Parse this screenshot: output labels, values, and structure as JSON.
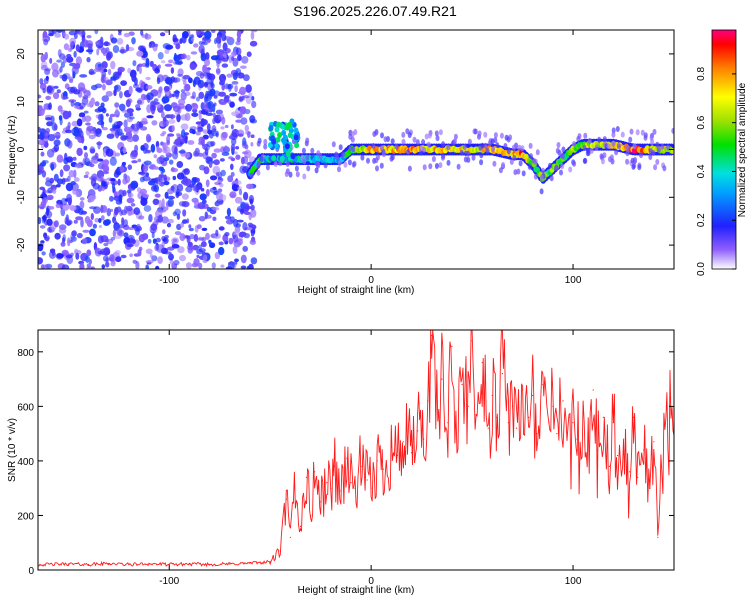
{
  "title": "S196.2025.226.07.49.R21",
  "chart_data": [
    {
      "type": "heatmap",
      "title": "S196.2025.226.07.49.R21",
      "xlabel": "Height of straight line (km)",
      "ylabel": "Frequency (Hz)",
      "xlim": [
        -165,
        150
      ],
      "ylim": [
        -25,
        25
      ],
      "xticks": [
        -100,
        0,
        100
      ],
      "yticks": [
        -20,
        -10,
        0,
        10,
        20
      ],
      "colorbar": {
        "label": "Normalized spectral amplitude",
        "range": [
          0.0,
          0.98
        ],
        "ticks": [
          0.0,
          0.2,
          0.4,
          0.6,
          0.8
        ]
      },
      "ridge": {
        "x": [
          -60,
          -55,
          -50,
          -45,
          -40,
          -35,
          -30,
          -25,
          -20,
          -15,
          -10,
          0,
          10,
          20,
          30,
          40,
          50,
          60,
          70,
          75,
          80,
          85,
          90,
          95,
          100,
          105,
          110,
          120,
          130,
          140,
          150
        ],
        "freq": [
          -5,
          -2,
          -2,
          -2,
          -2,
          -2,
          -2,
          -2,
          -2,
          -2,
          0,
          0,
          0,
          0,
          0,
          0,
          0,
          0,
          -1,
          -1,
          -3,
          -6,
          -4,
          -2,
          0,
          1,
          1,
          1,
          0,
          0,
          0
        ],
        "amplitude": [
          0.4,
          0.45,
          0.35,
          0.35,
          0.4,
          0.4,
          0.35,
          0.35,
          0.35,
          0.35,
          0.5,
          0.8,
          0.75,
          0.8,
          0.75,
          0.7,
          0.7,
          0.75,
          0.75,
          0.85,
          0.6,
          0.5,
          0.55,
          0.5,
          0.55,
          0.6,
          0.65,
          0.75,
          0.9,
          0.7,
          0.6
        ]
      },
      "noise_region": {
        "x_range": [
          -165,
          -58
        ],
        "amplitude_range": [
          0.05,
          0.22
        ]
      }
    },
    {
      "type": "line",
      "xlabel": "Height of straight line (km)",
      "ylabel": "SNR (10 * v/v)",
      "xlim": [
        -165,
        150
      ],
      "ylim": [
        0,
        880
      ],
      "xticks": [
        -100,
        0,
        100
      ],
      "yticks": [
        0,
        200,
        400,
        600,
        800
      ],
      "series": [
        {
          "name": "SNR",
          "color": "#ff1a1a",
          "x": [
            -165,
            -150,
            -140,
            -130,
            -120,
            -110,
            -100,
            -90,
            -80,
            -70,
            -60,
            -50,
            -45,
            -42,
            -40,
            -38,
            -35,
            -32,
            -30,
            -28,
            -25,
            -22,
            -20,
            -18,
            -15,
            -12,
            -10,
            -8,
            -5,
            -2,
            0,
            3,
            6,
            10,
            13,
            16,
            20,
            23,
            26,
            28,
            30,
            32,
            35,
            38,
            40,
            42,
            45,
            48,
            50,
            52,
            55,
            58,
            60,
            62,
            65,
            68,
            70,
            72,
            75,
            78,
            80,
            82,
            85,
            88,
            90,
            92,
            95,
            98,
            100,
            102,
            105,
            108,
            110,
            112,
            115,
            118,
            120,
            122,
            125,
            128,
            130,
            132,
            135,
            138,
            140,
            142,
            145,
            148,
            150
          ],
          "y": [
            20,
            22,
            20,
            24,
            20,
            23,
            20,
            22,
            20,
            22,
            25,
            30,
            70,
            260,
            120,
            300,
            160,
            340,
            200,
            360,
            250,
            320,
            300,
            380,
            290,
            410,
            320,
            300,
            380,
            330,
            300,
            400,
            370,
            450,
            420,
            470,
            430,
            510,
            480,
            620,
            860,
            580,
            700,
            540,
            820,
            560,
            680,
            600,
            840,
            570,
            760,
            520,
            640,
            560,
            720,
            540,
            600,
            520,
            660,
            560,
            640,
            500,
            680,
            540,
            600,
            500,
            620,
            560,
            540,
            480,
            600,
            420,
            660,
            440,
            560,
            380,
            540,
            420,
            480,
            360,
            560,
            340,
            440,
            300,
            470,
            120,
            560,
            600,
            520
          ]
        }
      ]
    }
  ]
}
